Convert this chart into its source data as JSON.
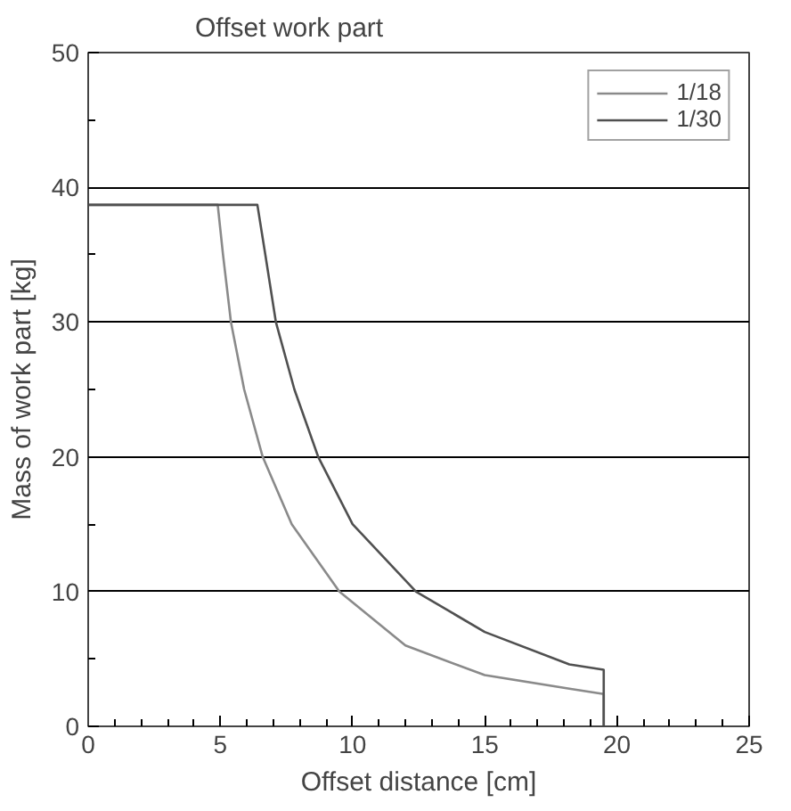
{
  "chart_data": {
    "type": "line",
    "title": "Offset work part",
    "xlabel": "Offset distance [cm]",
    "ylabel": "Mass of work part [kg]",
    "xlim": [
      0,
      25
    ],
    "xticks": [
      0,
      5,
      10,
      15,
      20,
      25
    ],
    "ylim": [
      0,
      50
    ],
    "yticks": [
      0,
      10,
      20,
      30,
      40,
      50
    ],
    "grid": "y",
    "legend": "top right",
    "marker": "none",
    "line_style": "solid",
    "series": [
      {
        "name": "1/18",
        "color": "#8a8a8a",
        "x": [
          0,
          4.9,
          5.1,
          5.4,
          5.9,
          6.6,
          7.7,
          9.5,
          12,
          15,
          18.2,
          19.5,
          19.5
        ],
        "values": [
          38.7,
          38.7,
          35,
          30,
          25,
          20,
          15,
          10,
          6,
          3.8,
          2.8,
          2.4,
          0
        ]
      },
      {
        "name": "1/30",
        "color": "#505050",
        "x": [
          0,
          6.4,
          6.7,
          7.1,
          7.8,
          8.7,
          10,
          12.4,
          15,
          18.2,
          19.5,
          19.5
        ],
        "values": [
          38.7,
          38.7,
          35,
          30,
          25,
          20,
          15,
          10,
          7,
          4.6,
          4.2,
          0
        ]
      }
    ]
  }
}
